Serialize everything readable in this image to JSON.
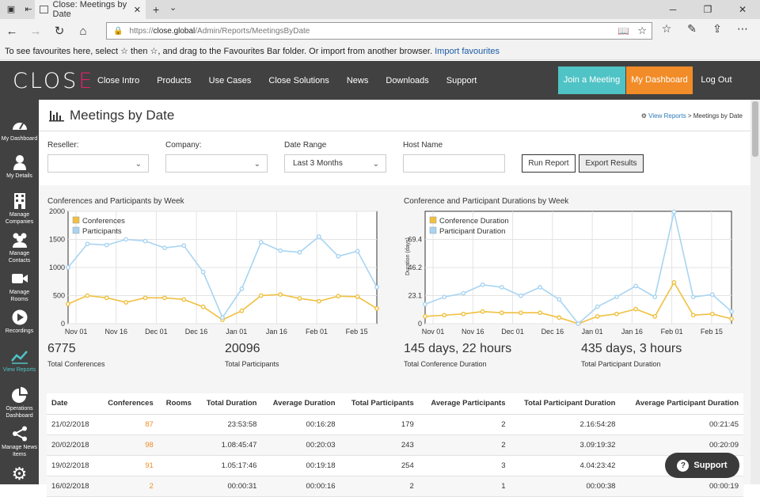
{
  "browser": {
    "tab_title": "Close: Meetings by Date",
    "url_prefix": "https://",
    "url_host": "close.global",
    "url_path": "/Admin/Reports/MeetingsByDate",
    "fav_text": "To see favourites here, select ☆ then ☆, and drag to the Favourites Bar folder. Or import from another browser.",
    "fav_link": "Import favourites"
  },
  "site": {
    "logo_main": "CLOS",
    "logo_accent": "E",
    "menu": [
      "Close Intro",
      "Products",
      "Use Cases",
      "Close Solutions",
      "News",
      "Downloads",
      "Support"
    ],
    "join": "Join a Meeting",
    "dashboard": "My Dashboard",
    "logout": "Log Out"
  },
  "sidebar": [
    {
      "label": "My Dashboard"
    },
    {
      "label": "My Details"
    },
    {
      "label": "Manage Companies"
    },
    {
      "label": "Manage Contacts"
    },
    {
      "label": "Manage Rooms"
    },
    {
      "label": "Recordings"
    },
    {
      "label": "View Reports"
    },
    {
      "label": "Operations Dashboard"
    },
    {
      "label": "Manage News Items"
    }
  ],
  "page": {
    "title": "Meetings by Date",
    "breadcrumb_link": "View Reports",
    "breadcrumb_sep": " > ",
    "breadcrumb_current": "Meetings by Date"
  },
  "filters": {
    "reseller_label": "Reseller:",
    "company_label": "Company:",
    "date_label": "Date Range",
    "date_value": "Last 3 Months",
    "host_label": "Host Name",
    "run": "Run Report",
    "export": "Export Results"
  },
  "stats": {
    "total_conferences": "6775",
    "total_conferences_label": "Total Conferences",
    "total_participants": "20096",
    "total_participants_label": "Total Participants",
    "conf_duration": "145 days, 22 hours",
    "conf_duration_label": "Total Conference Duration",
    "part_duration": "435 days, 3 hours",
    "part_duration_label": "Total Participant Duration"
  },
  "chart_data": [
    {
      "type": "line",
      "title": "Conferences and Participants by Week",
      "x_ticks": [
        "Nov 01",
        "Nov 16",
        "Dec 01",
        "Dec 16",
        "Jan 01",
        "Jan 16",
        "Feb 01",
        "Feb 15"
      ],
      "y_ticks": [
        "0",
        "500",
        "1000",
        "1500",
        "2000"
      ],
      "ylim": [
        0,
        2000
      ],
      "legend": "top-left",
      "series": [
        {
          "name": "Conferences",
          "color": "#f0c040",
          "values": [
            350,
            500,
            460,
            380,
            460,
            460,
            430,
            300,
            70,
            230,
            500,
            520,
            450,
            400,
            490,
            480,
            270
          ]
        },
        {
          "name": "Participants",
          "color": "#a8d4f2",
          "values": [
            1000,
            1420,
            1400,
            1500,
            1470,
            1350,
            1390,
            920,
            110,
            620,
            1450,
            1300,
            1270,
            1550,
            1200,
            1290,
            650
          ]
        }
      ]
    },
    {
      "type": "line",
      "title": "Conference and Participant Durations by Week",
      "x_ticks": [
        "Nov 01",
        "Nov 16",
        "Dec 01",
        "Dec 16",
        "Jan 01",
        "Jan 16",
        "Feb 01",
        "Feb 15"
      ],
      "y_ticks": [
        "0",
        "23.1",
        "46.2",
        "69.4"
      ],
      "ylabel": "Duration (days)",
      "ylim": [
        0,
        92.5
      ],
      "legend": "top-left",
      "series": [
        {
          "name": "Conference Duration",
          "color": "#f0c040",
          "values": [
            6,
            7,
            8,
            10,
            9,
            9,
            9,
            5,
            0,
            6,
            8,
            12,
            6,
            34,
            7,
            8,
            4
          ]
        },
        {
          "name": "Participant Duration",
          "color": "#a8d4f2",
          "values": [
            16,
            22,
            25,
            32,
            30,
            23,
            30,
            20,
            0,
            14,
            22,
            31,
            22,
            92,
            22,
            24,
            10
          ]
        }
      ]
    }
  ],
  "table": {
    "headers": [
      "Date",
      "Conferences",
      "Rooms",
      "Total Duration",
      "Average Duration",
      "Total Participants",
      "Average Participants",
      "Total Participant Duration",
      "Average Participant Duration"
    ],
    "rows": [
      [
        "21/02/2018",
        "87",
        "",
        "23:53:58",
        "00:16:28",
        "179",
        "2",
        "2.16:54:28",
        "00:21:45"
      ],
      [
        "20/02/2018",
        "98",
        "",
        "1.08:45:47",
        "00:20:03",
        "243",
        "2",
        "3.09:19:32",
        "00:20:09"
      ],
      [
        "19/02/2018",
        "91",
        "",
        "1.05:17:46",
        "00:19:18",
        "254",
        "3",
        "4.04:23:42",
        ""
      ],
      [
        "16/02/2018",
        "2",
        "",
        "00:00:31",
        "00:00:16",
        "2",
        "1",
        "00:00:38",
        "00:00:19"
      ]
    ]
  },
  "support": "Support"
}
